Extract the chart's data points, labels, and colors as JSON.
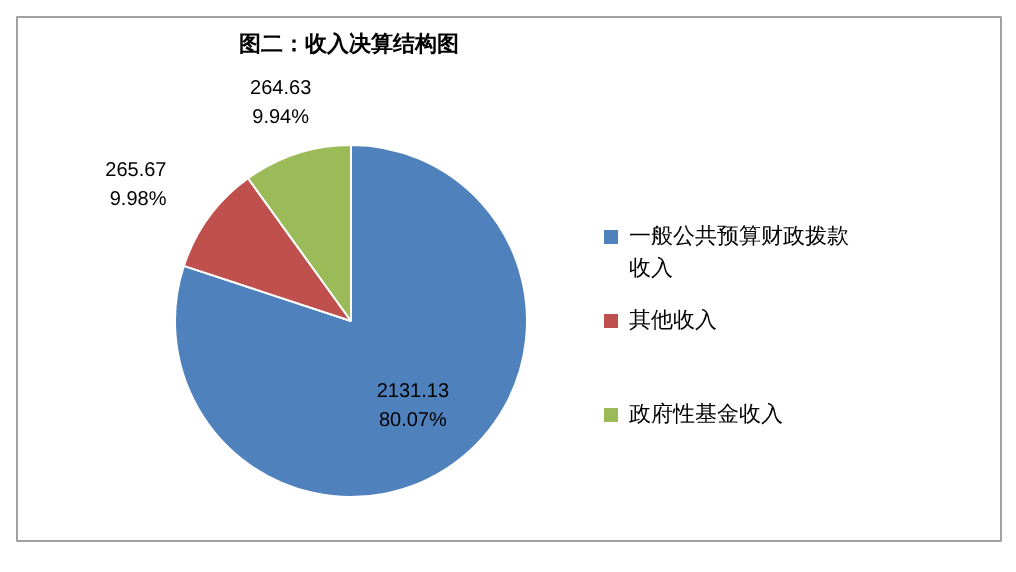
{
  "chart_data": {
    "type": "pie",
    "title": "图二：收入决算结构图",
    "categories": [
      "一般公共预算财政拨款收入",
      "其他收入",
      "政府性基金收入"
    ],
    "values": [
      2131.13,
      265.67,
      264.63
    ],
    "colors": [
      "#4f81bd",
      "#c0504d",
      "#9bbb59"
    ],
    "value_labels": [
      "2131.13\n80.07%",
      "265.67\n9.98%",
      "264.63\n9.94%"
    ],
    "legend": "right"
  }
}
